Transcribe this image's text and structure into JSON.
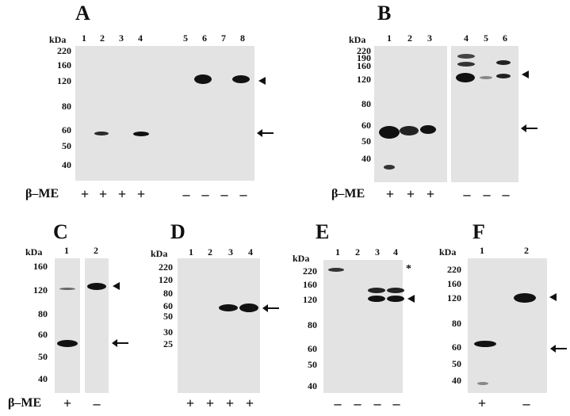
{
  "panels": {
    "A": {
      "letter": "A",
      "kda": "kDa",
      "lanes": [
        "1",
        "2",
        "3",
        "4",
        "5",
        "6",
        "7",
        "8"
      ],
      "mw": [
        "220",
        "160",
        "120",
        "80",
        "60",
        "50",
        "40"
      ],
      "signs": [
        "+",
        "+",
        "+",
        "+",
        "–",
        "–",
        "–",
        "–"
      ],
      "bme": "β–ME"
    },
    "B": {
      "letter": "B",
      "kda": "kDa",
      "lanes": [
        "1",
        "2",
        "3",
        "4",
        "5",
        "6"
      ],
      "mw": [
        "220",
        "190",
        "160",
        "120",
        "80",
        "60",
        "50",
        "40"
      ],
      "signs": [
        "+",
        "+",
        "+",
        "–",
        "–",
        "–"
      ],
      "bme": "β–ME"
    },
    "C": {
      "letter": "C",
      "kda": "kDa",
      "lanes": [
        "1",
        "2"
      ],
      "mw": [
        "160",
        "120",
        "80",
        "60",
        "50",
        "40"
      ],
      "signs": [
        "+",
        "–"
      ],
      "bme": "β–ME"
    },
    "D": {
      "letter": "D",
      "kda": "kDa",
      "lanes": [
        "1",
        "2",
        "3",
        "4"
      ],
      "mw": [
        "220",
        "120",
        "80",
        "60",
        "50",
        "30",
        "25"
      ],
      "signs": [
        "+",
        "+",
        "+",
        "+"
      ]
    },
    "E": {
      "letter": "E",
      "kda": "kDa",
      "lanes": [
        "1",
        "2",
        "3",
        "4"
      ],
      "mw": [
        "220",
        "160",
        "120",
        "80",
        "60",
        "50",
        "40"
      ],
      "signs": [
        "–",
        "–",
        "–",
        "–"
      ],
      "star": "*"
    },
    "F": {
      "letter": "F",
      "kda": "kDa",
      "lanes": [
        "1",
        "2"
      ],
      "mw": [
        "220",
        "160",
        "120",
        "80",
        "60",
        "50",
        "40"
      ],
      "signs": [
        "+",
        "–"
      ]
    }
  },
  "colors": {
    "membrane": "#e3e3e3",
    "band": "#151515",
    "ink": "#111111"
  }
}
